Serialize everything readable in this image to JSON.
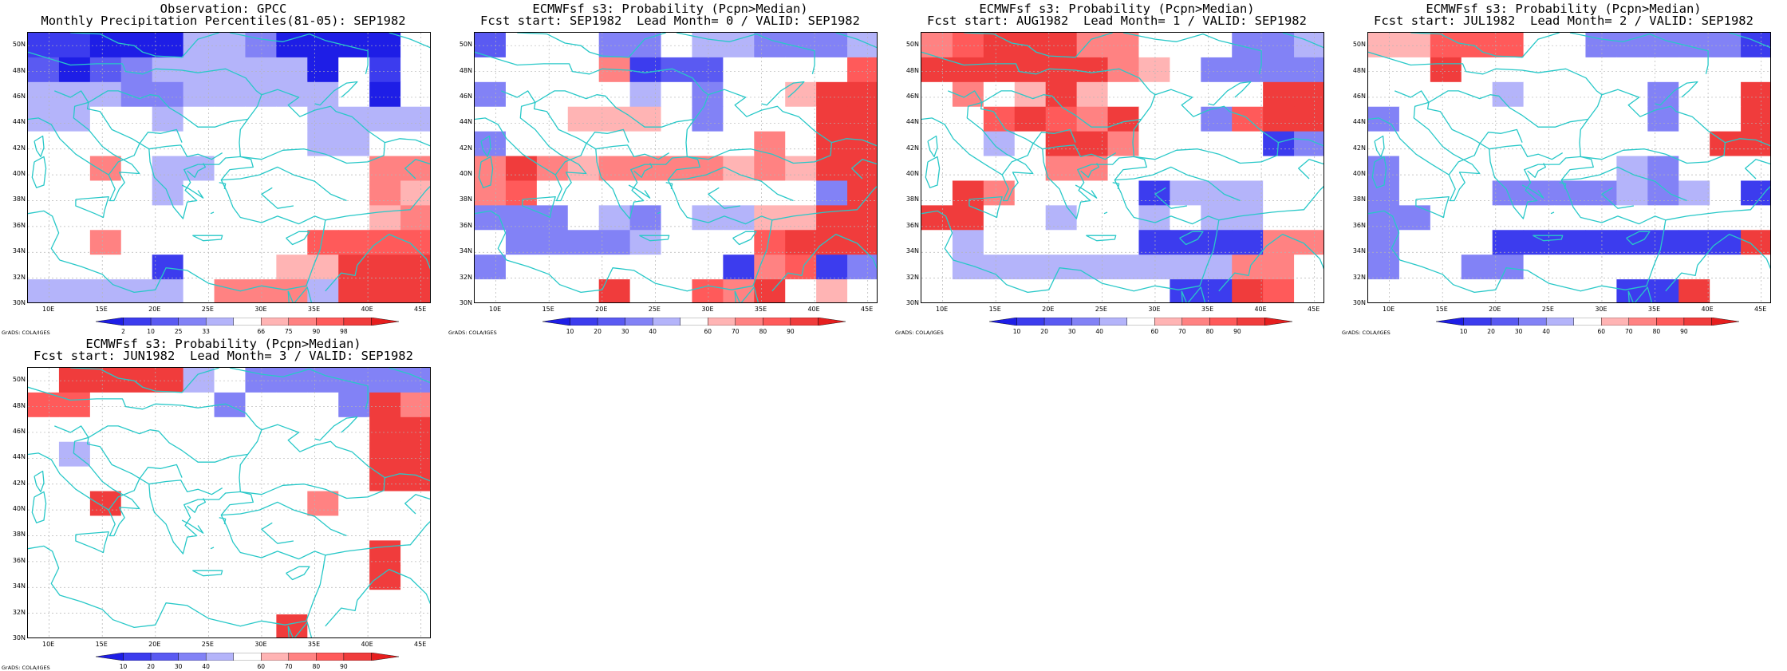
{
  "credit": "GrADS: COLA/IGES",
  "lon_ticks": [
    "10E",
    "15E",
    "20E",
    "25E",
    "30E",
    "35E",
    "40E",
    "45E"
  ],
  "lat_ticks": [
    "50N",
    "48N",
    "46N",
    "44N",
    "42N",
    "40N",
    "38N",
    "36N",
    "34N",
    "32N",
    "30N"
  ],
  "colors": {
    "palette": [
      "#1e1ee6",
      "#3c3cee",
      "#5a5af2",
      "#8282f6",
      "#b4b4fa",
      "#ffffff",
      "#ffb4b4",
      "#ff8282",
      "#ff5a5a",
      "#f03c3c",
      "#e61e1e"
    ],
    "coastline": "#28c8c8",
    "grid": "#b4b4b4"
  },
  "panels": [
    {
      "title1": "Observation: GPCC",
      "title2": "Monthly Precipitation Percentiles(81-05): SEP1982",
      "colorbar": [
        "2",
        "10",
        "25",
        "33",
        "66",
        "75",
        "90",
        "98"
      ],
      "grid": [
        "1100044300005",
        "2023444440515",
        "4443344444505",
        "4455455554444",
        "5555555554455",
        "5575445555577",
        "5555455555576",
        "5555555555567",
        "5575555558888",
        "5555155566999",
        "4444457774999"
      ]
    },
    {
      "title1": "ECMWFsf s3: Probability (Pcpn>Median)",
      "title2": "Fcst start: SEP1982  Lead Month= 0 / VALID: SEP1982",
      "colorbar": [
        "10",
        "20",
        "30",
        "40",
        "60",
        "70",
        "80",
        "90"
      ],
      "grid": [
        "2555335443334",
        "5555712255558",
        "3555545355699",
        "5556665355599",
        "3555555557599",
        "7976777767699",
        "7855555555539",
        "3335435446699",
        "5333345558999",
        "3555555517813",
        "5555955879565"
      ]
    },
    {
      "title1": "ECMWFsf s3: Probability (Pcpn>Median)",
      "title2": "Fcst start: AUG1982  Lead Month= 1 / VALID: SEP1982",
      "colorbar": [
        "10",
        "20",
        "30",
        "40",
        "60",
        "70",
        "80",
        "90"
      ],
      "grid": [
        "7899977555334",
        "9999997653333",
        "5756965555599",
        "5589879553899",
        "5545997555513",
        "5555775555555",
        "5975555144455",
        "9955455454455",
        "5455555111177",
        "5444444444775",
        "5555555511985"
      ]
    },
    {
      "title1": "ECMWFsf s3: Probability (Pcpn>Median)",
      "title2": "Fcst start: JUL1982  Lead Month= 2 / VALID: SEP1982",
      "colorbar": [
        "10",
        "20",
        "30",
        "40",
        "60",
        "70",
        "80",
        "90"
      ],
      "grid": [
        "6688855333331",
        "5595555555555",
        "5555455553559",
        "3555555553559",
        "5555555555599",
        "3555555543555",
        "3555333343451",
        "3355555555555",
        "3555111111119",
        "3553355555555",
        "5555555511955"
      ]
    },
    {
      "title1": "ECMWFsf s3: Probability (Pcpn>Median)",
      "title2": "Fcst start: JUN1982  Lead Month= 3 / VALID: SEP1982",
      "colorbar": [
        "10",
        "20",
        "30",
        "40",
        "60",
        "70",
        "80",
        "90"
      ],
      "grid": [
        "5999945333333",
        "8855553555397",
        "5555555555599",
        "5455555555599",
        "5555555555599",
        "5595555557555",
        "5555555555555",
        "5555555555595",
        "5555555555595",
        "5555555555555",
        "5555555595555"
      ]
    }
  ]
}
